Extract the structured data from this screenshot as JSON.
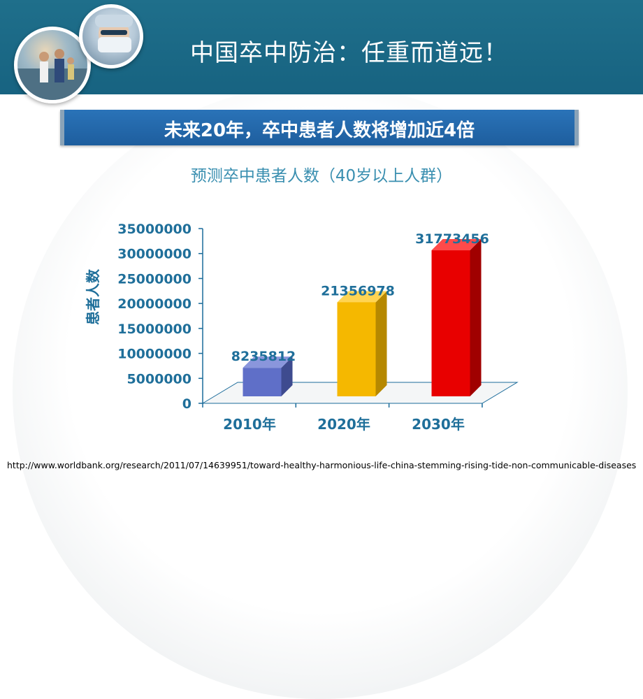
{
  "header": {
    "title": "中国卒中防治：任重而道远！"
  },
  "banner": {
    "text": "未来20年，卒中患者人数将增加近4倍"
  },
  "chart_data": {
    "type": "bar",
    "title": "预测卒中患者人数（40岁以上人群）",
    "ylabel": "患者人数",
    "xlabel": "",
    "categories": [
      "2010年",
      "2020年",
      "2030年"
    ],
    "values": [
      8235812,
      21356978,
      31773456
    ],
    "data_labels": [
      "8235812",
      "21356978",
      "31773456"
    ],
    "yticks": [
      "0",
      "5000000",
      "10000000",
      "15000000",
      "20000000",
      "25000000",
      "30000000",
      "35000000"
    ],
    "ylim": [
      0,
      35000000
    ],
    "grid": false,
    "legend": "none",
    "colors": [
      "#5f6fc8",
      "#f5b800",
      "#e80000"
    ],
    "side_colors": [
      "#3e4b8f",
      "#b68800",
      "#a00000"
    ],
    "top_colors": [
      "#8a96dc",
      "#ffd452",
      "#ff4a4a"
    ],
    "axis_color": "#1a6b9a",
    "label_color": "#1f6f9a"
  },
  "footer": {
    "url": "http://www.worldbank.org/research/2011/07/14639951/toward-healthy-harmonious-life-china-stemming-rising-tide-non-communicable-diseases"
  }
}
